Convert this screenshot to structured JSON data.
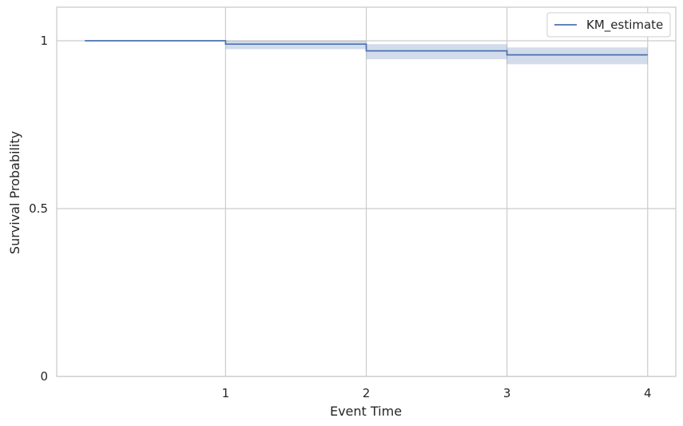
{
  "chart_data": {
    "type": "line",
    "title": "",
    "xlabel": "Event Time",
    "ylabel": "Survival Probability",
    "xlim": [
      -0.2,
      4.2
    ],
    "ylim": [
      0,
      1.1
    ],
    "x_ticks": [
      1,
      2,
      3,
      4
    ],
    "x_tick_labels": [
      "1",
      "2",
      "3",
      "4"
    ],
    "y_ticks": [
      0,
      0.5,
      1
    ],
    "y_tick_labels": [
      "0",
      "0.5",
      "1"
    ],
    "grid": true,
    "legend_position": "top-right",
    "colors": {
      "line": "#4c72b0",
      "band": "#4c72b0",
      "grid": "#cccccc",
      "spine": "#cccccc"
    },
    "series": [
      {
        "name": "KM_estimate",
        "step": "post",
        "x": [
          0,
          1,
          2,
          3,
          4
        ],
        "y": [
          1.0,
          0.99,
          0.97,
          0.958,
          0.958
        ],
        "ci_lower": [
          1.0,
          0.975,
          0.945,
          0.93,
          0.93
        ],
        "ci_upper": [
          1.0,
          1.0,
          0.99,
          0.98,
          0.98
        ]
      }
    ]
  }
}
